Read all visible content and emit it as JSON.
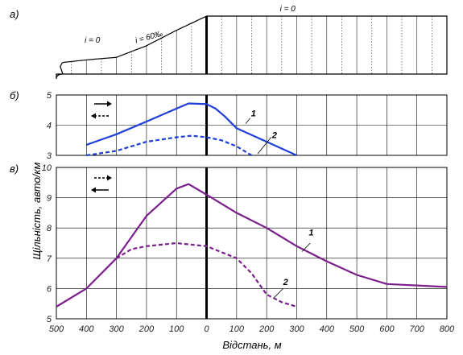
{
  "chart_data": [
    {
      "panel": "a",
      "type": "line",
      "panel_label": "а)",
      "description": "",
      "profile_x": [
        -500,
        -480,
        -400,
        -300,
        -200,
        -100,
        0,
        800
      ],
      "profile_y": [
        0,
        18,
        22,
        26,
        44,
        68,
        90,
        90
      ],
      "gradient_labels": [
        "i = 0",
        "i = 60‰",
        "i = 0"
      ],
      "xlim": [
        -500,
        800
      ]
    },
    {
      "panel": "b",
      "type": "line",
      "panel_label": "б)",
      "ylim": [
        3,
        5
      ],
      "yticks": [
        3,
        4,
        5
      ],
      "xlim": [
        -500,
        800
      ],
      "series": [
        {
          "name": "1",
          "style": "solid",
          "color": "#1f3fd6",
          "x": [
            -400,
            -300,
            -200,
            -100,
            -60,
            0,
            30,
            60,
            100,
            200,
            300
          ],
          "y": [
            3.35,
            3.7,
            4.12,
            4.55,
            4.72,
            4.7,
            4.55,
            4.3,
            3.9,
            3.45,
            3.0
          ]
        },
        {
          "name": "2",
          "style": "dashed",
          "color": "#1f3fd6",
          "x": [
            -400,
            -300,
            -200,
            -100,
            -50,
            0,
            50,
            100,
            150
          ],
          "y": [
            3.0,
            3.15,
            3.45,
            3.6,
            3.65,
            3.6,
            3.5,
            3.3,
            3.0
          ]
        }
      ],
      "legend_arrows": [
        "solid →",
        "dashed ←"
      ]
    },
    {
      "panel": "c",
      "type": "line",
      "panel_label": "в)",
      "ylabel": "Щільність, авто/км",
      "xlabel": "Відстань, м",
      "ylim": [
        5,
        10
      ],
      "yticks": [
        5,
        6,
        7,
        8,
        9,
        10
      ],
      "xlim": [
        -500,
        800
      ],
      "xtick_positions": [
        -500,
        -400,
        -300,
        -200,
        -100,
        0,
        100,
        200,
        300,
        400,
        500,
        600,
        700,
        800
      ],
      "xtick_labels": [
        "500",
        "400",
        "300",
        "200",
        "100",
        "0",
        "100",
        "200",
        "300",
        "400",
        "500",
        "600",
        "700",
        "800"
      ],
      "series": [
        {
          "name": "1",
          "style": "solid",
          "color": "#7b1f8c",
          "x": [
            -500,
            -400,
            -300,
            -200,
            -100,
            -60,
            0,
            100,
            200,
            300,
            400,
            500,
            600,
            700,
            800
          ],
          "y": [
            5.4,
            6.0,
            7.0,
            8.4,
            9.3,
            9.45,
            9.1,
            8.5,
            8.0,
            7.4,
            6.9,
            6.45,
            6.15,
            6.1,
            6.05
          ]
        },
        {
          "name": "2",
          "style": "dashed",
          "color": "#7b1f8c",
          "x": [
            -300,
            -250,
            -200,
            -100,
            0,
            100,
            150,
            200,
            250,
            300
          ],
          "y": [
            7.0,
            7.3,
            7.4,
            7.5,
            7.4,
            7.0,
            6.5,
            5.8,
            5.55,
            5.4
          ]
        }
      ],
      "legend_arrows": [
        "dashed →",
        "solid ←"
      ]
    }
  ]
}
